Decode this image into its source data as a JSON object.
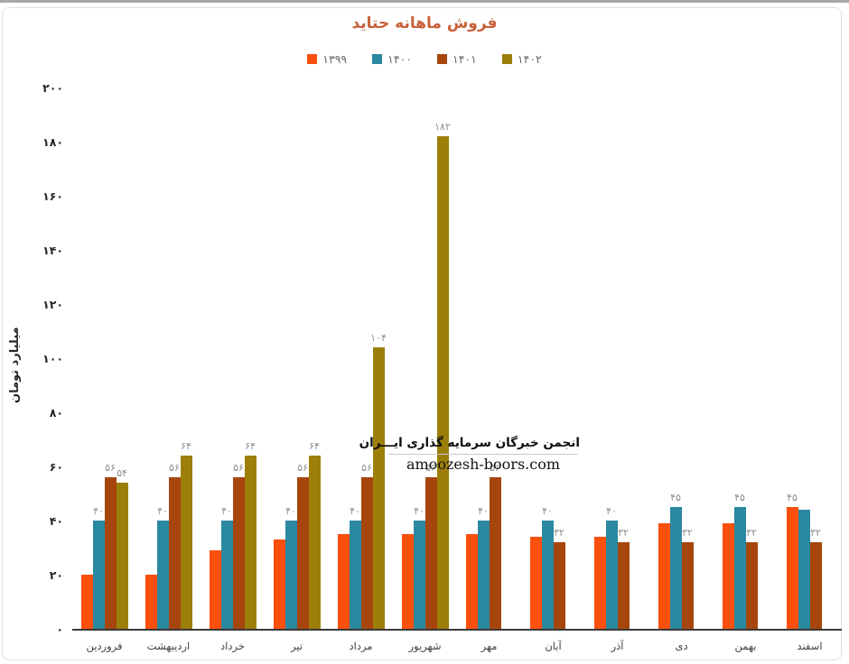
{
  "title": "فروش ماهانه حتاید",
  "y_axis": {
    "title": "میلیارد تومان",
    "ticks": [
      "۰",
      "۲۰",
      "۴۰",
      "۶۰",
      "۸۰",
      "۱۰۰",
      "۱۲۰",
      "۱۴۰",
      "۱۶۰",
      "۱۸۰",
      "۲۰۰"
    ]
  },
  "watermark": {
    "line1": "انجمن خبرگان سرمایه گذاری ایـــران",
    "line2": "amoozesh-boors.com"
  },
  "colors": {
    "series_1399": "#fb4f0e",
    "series_1400": "#2a88a0",
    "series_1401": "#a6460d",
    "series_1402": "#9c7f08",
    "title": "#c8603a",
    "axis_line": "#3a3a3a",
    "data_label": "#8f8f8f",
    "frame_border": "#e0e0e0"
  },
  "chart_data": {
    "type": "bar",
    "title": "فروش ماهانه حتاید",
    "xlabel": "",
    "ylabel": "میلیارد تومان",
    "ylim": [
      0,
      200
    ],
    "grid": false,
    "legend_position": "top",
    "categories": [
      "فروردین",
      "اردیبهشت",
      "خرداد",
      "تیر",
      "مرداد",
      "شهریور",
      "مهر",
      "آبان",
      "آذر",
      "دی",
      "بهمن",
      "اسفند"
    ],
    "series": [
      {
        "name": "۱۳۹۹",
        "color": "#fb4f0e",
        "values": [
          20,
          20,
          29,
          33,
          35,
          35,
          35,
          34,
          34,
          39,
          39,
          45
        ],
        "labels": [
          "",
          "",
          "",
          "",
          "",
          "",
          "",
          "",
          "",
          "",
          "",
          "۴۵"
        ]
      },
      {
        "name": "۱۴۰۰",
        "color": "#2a88a0",
        "values": [
          40,
          40,
          40,
          40,
          40,
          40,
          40,
          40,
          40,
          45,
          45,
          44
        ],
        "labels": [
          "۴۰",
          "۴۰",
          "۴۰",
          "۴۰",
          "۴۰",
          "۴۰",
          "۴۰",
          "۴۰",
          "۴۰",
          "۴۵",
          "۴۵",
          ""
        ]
      },
      {
        "name": "۱۴۰۱",
        "color": "#a6460d",
        "values": [
          56,
          56,
          56,
          56,
          56,
          56,
          56,
          32,
          32,
          32,
          32,
          32
        ],
        "labels": [
          "۵۶",
          "۵۶",
          "۵۶",
          "۵۶",
          "۵۶",
          "۵۶",
          "۵۶",
          "۳۲",
          "۳۲",
          "۳۲",
          "۳۲",
          "۳۲"
        ]
      },
      {
        "name": "۱۴۰۲",
        "color": "#9c7f08",
        "values": [
          54,
          64,
          64,
          64,
          104,
          182,
          null,
          null,
          null,
          null,
          null,
          null
        ],
        "labels": [
          "۵۴",
          "۶۴",
          "۶۴",
          "۶۴",
          "۱۰۴",
          "۱۸۲",
          "",
          "",
          "",
          "",
          "",
          ""
        ]
      }
    ]
  }
}
